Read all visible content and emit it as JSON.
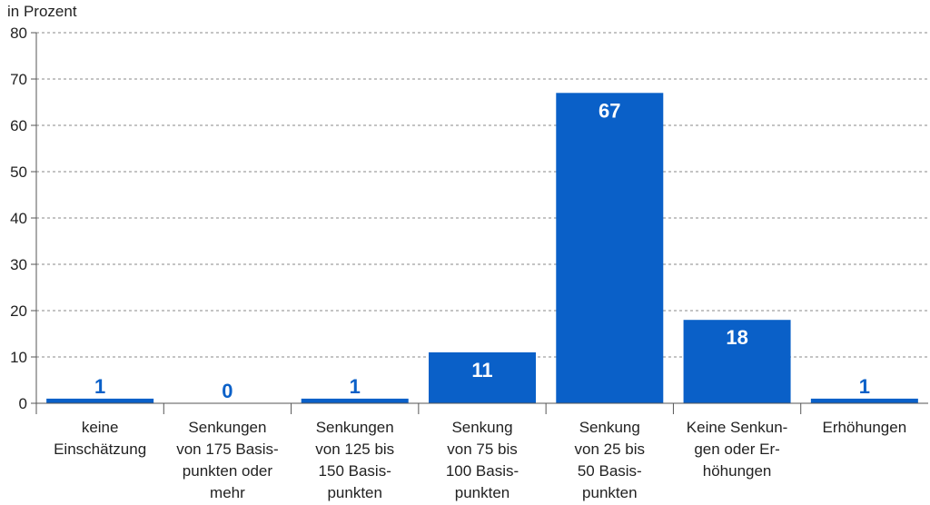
{
  "chart_data": {
    "type": "bar",
    "ylabel": "in Prozent",
    "ylim": [
      0,
      80
    ],
    "yticks": [
      "0",
      "10",
      "20",
      "30",
      "40",
      "50",
      "60",
      "70",
      "80"
    ],
    "grid": true,
    "categories": [
      [
        "keine",
        "Einschätzung"
      ],
      [
        "Senkungen",
        "von 175 Basis-",
        "punkten oder",
        "mehr"
      ],
      [
        "Senkungen",
        "von 125 bis",
        "150 Basis-",
        "punkten"
      ],
      [
        "Senkung",
        "von 75 bis",
        "100 Basis-",
        "punkten"
      ],
      [
        "Senkung",
        "von 25 bis",
        "50 Basis-",
        "punkten"
      ],
      [
        "Keine Senkun-",
        "gen oder Er-",
        "höhungen"
      ],
      [
        "Erhöhungen"
      ]
    ],
    "values": [
      1,
      0,
      1,
      11,
      67,
      18,
      1
    ],
    "value_labels": [
      "1",
      "0",
      "1",
      "11",
      "67",
      "18",
      "1"
    ],
    "colors": {
      "bar": "#0a60c8",
      "label_outside": "#0a60c8",
      "label_inside": "#ffffff",
      "grid": "#888888",
      "axis": "#555555"
    }
  }
}
